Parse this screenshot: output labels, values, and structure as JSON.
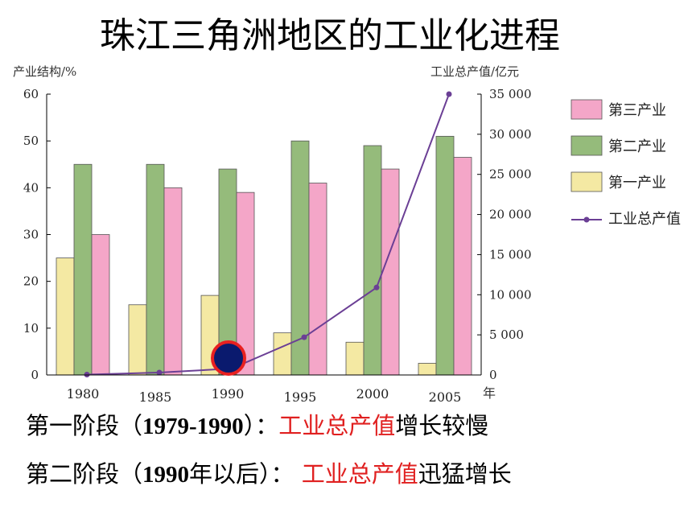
{
  "title": "珠江三角洲地区的工业化进程",
  "chart_data": {
    "type": "bar",
    "left_axis_label": "产业结构/%",
    "right_axis_label": "工业总产值/亿元",
    "x_unit": "年",
    "categories": [
      "1980",
      "1985",
      "1990",
      "1995",
      "2000",
      "2005"
    ],
    "y_left_lim": [
      0,
      60
    ],
    "y_left_ticks": [
      "0",
      "10",
      "20",
      "30",
      "40",
      "50",
      "60"
    ],
    "y_right_lim": [
      0,
      35000
    ],
    "y_right_ticks": [
      "0",
      "5 000",
      "10 000",
      "15 000",
      "20 000",
      "25 000",
      "30 000",
      "35 000"
    ],
    "series": [
      {
        "name": "第一产业",
        "color": "#f4e9a3",
        "values": [
          25,
          15,
          17,
          9,
          7,
          2.5
        ]
      },
      {
        "name": "第二产业",
        "color": "#95bb7b",
        "values": [
          45,
          45,
          44,
          50,
          49,
          51
        ]
      },
      {
        "name": "第三产业",
        "color": "#f4a6c8",
        "values": [
          30,
          40,
          39,
          41,
          44,
          46.5
        ]
      }
    ],
    "line_series": {
      "name": "工业总产值",
      "color": "#6b3f95",
      "axis": "right",
      "values": [
        50,
        300,
        800,
        4700,
        10900,
        35000
      ]
    },
    "legend_order": [
      "第三产业",
      "第二产业",
      "第一产业",
      "工业总产值"
    ],
    "legend_position": "right",
    "marker_on_year": "1990"
  },
  "notes": {
    "line1": {
      "prefix": "第一阶段（",
      "years": "1979-1990",
      "mid": "）：",
      "highlight": "工业总产值",
      "suffix": "增长较慢"
    },
    "line2": {
      "prefix": "第二阶段（",
      "years": "1990",
      "yearword": "年以后）：",
      "highlight": "工业总产值",
      "suffix": "迅猛增长"
    }
  }
}
